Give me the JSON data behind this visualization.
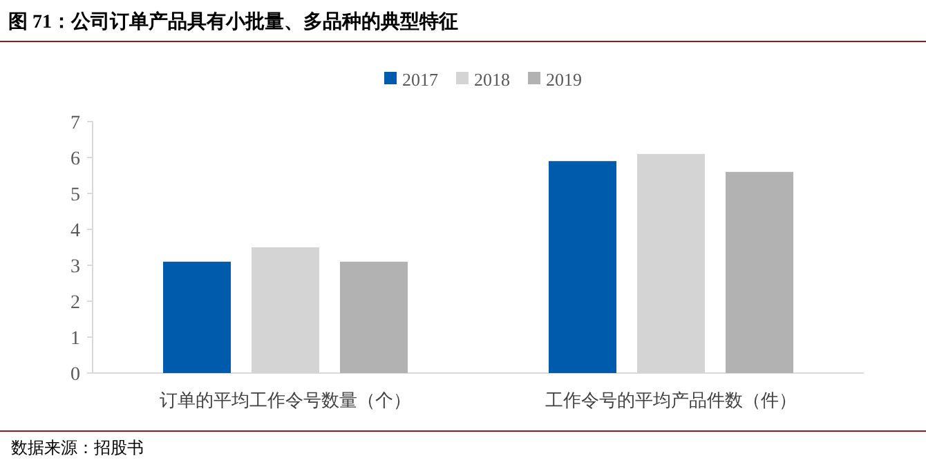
{
  "chart_data": {
    "type": "bar",
    "title": "图 71：公司订单产品具有小批量、多品种的典型特征",
    "categories": [
      "订单的平均工作令号数量（个）",
      "工作令号的平均产品件数（件）"
    ],
    "series": [
      {
        "name": "2017",
        "color": "#005bac",
        "values": [
          3.1,
          5.9
        ]
      },
      {
        "name": "2018",
        "color": "#d4d4d4",
        "values": [
          3.5,
          6.1
        ]
      },
      {
        "name": "2019",
        "color": "#b2b2b2",
        "values": [
          3.1,
          5.6
        ]
      }
    ],
    "ylim": [
      0,
      7
    ],
    "yticks": [
      0,
      1,
      2,
      3,
      4,
      5,
      6,
      7
    ],
    "grid": false,
    "legend": "top",
    "annotations": [
      "数据来源：招股书"
    ]
  }
}
